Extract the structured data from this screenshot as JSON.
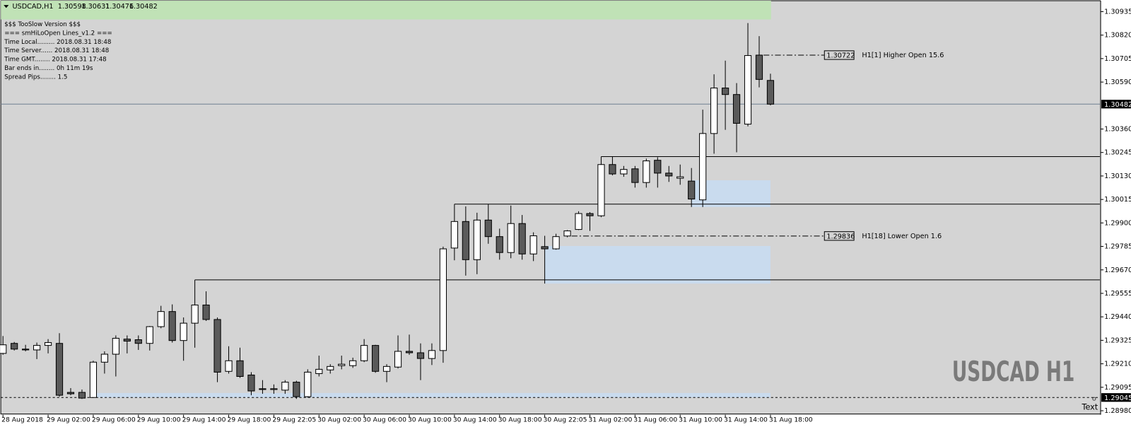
{
  "chart_data": {
    "type": "candlestick",
    "symbol": "USDCAD,H1",
    "watermark": "USDCAD H1",
    "corner_text": "Text",
    "info": [
      "$$$ TooSlow Version $$$",
      "=== smHiLoOpen Lines_v1.2 ===",
      "Time Local......... 2018.08.31 18:48",
      "Time Server...... 2018.08.31 18:48",
      "Time GMT........ 2018.08.31 17:48",
      "Bar ends in........ 0h 11m 19s",
      "Spread Pips........ 1.5"
    ],
    "categories": [
      "28 Aug 2018",
      null,
      null,
      null,
      "29 Aug 02:00",
      null,
      null,
      null,
      "29 Aug 06:00",
      null,
      null,
      null,
      "29 Aug 10:00",
      null,
      null,
      null,
      "29 Aug 14:00",
      null,
      null,
      null,
      "29 Aug 18:00",
      null,
      null,
      null,
      "29 Aug 22:05",
      null,
      null,
      null,
      "30 Aug 02:00",
      null,
      null,
      null,
      "30 Aug 06:00",
      null,
      null,
      null,
      "30 Aug 10:00",
      null,
      null,
      null,
      "30 Aug 14:00",
      null,
      null,
      null,
      "30 Aug 18:00",
      null,
      null,
      null,
      "30 Aug 22:05",
      null,
      null,
      null,
      "31 Aug 02:00",
      null,
      null,
      null,
      "31 Aug 06:00",
      null,
      null,
      null,
      "31 Aug 10:00",
      null,
      null,
      null,
      "31 Aug 14:00",
      null,
      null,
      null,
      "31 Aug 18:00"
    ],
    "open": [
      1.29261,
      1.2931,
      1.29282,
      1.29278,
      1.293,
      1.2931,
      1.2907,
      1.2907,
      1.29045,
      1.29218,
      1.29257,
      1.29331,
      1.29328,
      1.2931,
      1.29392,
      1.29466,
      1.29324,
      1.29409,
      1.29498,
      1.29427,
      1.29173,
      1.29225,
      1.29155,
      1.29088,
      1.29084,
      1.29081,
      1.2912,
      1.29049,
      1.29162,
      1.2918,
      1.29201,
      1.29201,
      1.29225,
      1.293,
      1.29173,
      1.29194,
      1.29271,
      1.29264,
      1.29236,
      1.29275,
      1.29777,
      1.29907,
      1.2972,
      1.29914,
      1.29833,
      1.29755,
      1.29897,
      1.29748,
      1.29784,
      1.29773,
      1.29836,
      1.29868,
      1.29946,
      1.29935,
      1.30186,
      1.3014,
      1.30165,
      1.30098,
      1.30207,
      1.30144,
      1.30119,
      1.30105,
      1.30013,
      1.30338,
      1.30561,
      1.30529,
      1.30384,
      1.30722,
      1.30598
    ],
    "high": [
      1.29346,
      1.29317,
      1.29303,
      1.29314,
      1.29331,
      1.2936,
      1.29091,
      1.29084,
      1.29225,
      1.29271,
      1.29349,
      1.29349,
      1.29349,
      1.29395,
      1.29494,
      1.29501,
      1.29437,
      1.29621,
      1.29565,
      1.29437,
      1.29296,
      1.29289,
      1.29169,
      1.2913,
      1.29109,
      1.2913,
      1.29127,
      1.29183,
      1.2925,
      1.29208,
      1.2925,
      1.2924,
      1.29331,
      1.29303,
      1.29208,
      1.29349,
      1.29353,
      1.2931,
      1.2931,
      1.29784,
      1.29992,
      1.29981,
      1.2995,
      1.29992,
      1.29872,
      1.29985,
      1.29939,
      1.29854,
      1.29837,
      1.29847,
      1.29865,
      1.29957,
      1.29953,
      1.30225,
      1.30225,
      1.30179,
      1.30179,
      1.30215,
      1.30222,
      1.30179,
      1.30186,
      1.30169,
      1.30455,
      1.30628,
      1.30695,
      1.30585,
      1.30879,
      1.30815,
      1.30631
    ],
    "low": [
      1.29254,
      1.29275,
      1.29271,
      1.29233,
      1.29261,
      1.29049,
      1.29056,
      1.29038,
      1.29045,
      1.29162,
      1.29148,
      1.29261,
      1.29278,
      1.29275,
      1.29384,
      1.29314,
      1.29225,
      1.29289,
      1.2942,
      1.2912,
      1.29162,
      1.29141,
      1.29056,
      1.29063,
      1.29063,
      1.29063,
      1.29038,
      1.29045,
      1.29148,
      1.29162,
      1.29183,
      1.2919,
      1.29218,
      1.29166,
      1.2912,
      1.29187,
      1.29254,
      1.2913,
      1.29204,
      1.29215,
      1.29717,
      1.29642,
      1.29649,
      1.29798,
      1.2972,
      1.29727,
      1.2972,
      1.29713,
      1.29603,
      1.29769,
      1.2983,
      1.29865,
      1.29861,
      1.29928,
      1.30133,
      1.30126,
      1.30073,
      1.30073,
      1.30073,
      1.30101,
      1.30087,
      1.29978,
      1.29978,
      1.30239,
      1.30356,
      1.30246,
      1.30373,
      1.30564,
      1.30476
    ],
    "close": [
      1.29303,
      1.29282,
      1.29278,
      1.293,
      1.29314,
      1.29056,
      1.29063,
      1.29042,
      1.29218,
      1.29257,
      1.29335,
      1.29321,
      1.2931,
      1.29392,
      1.29466,
      1.29324,
      1.29409,
      1.29498,
      1.29427,
      1.29169,
      1.29225,
      1.29148,
      1.29077,
      1.29084,
      1.29088,
      1.2912,
      1.29049,
      1.29169,
      1.29183,
      1.29197,
      1.29208,
      1.29225,
      1.293,
      1.29173,
      1.29197,
      1.29271,
      1.29264,
      1.29236,
      1.29275,
      1.29773,
      1.29907,
      1.2972,
      1.29914,
      1.29833,
      1.29755,
      1.29897,
      1.29748,
      1.29837,
      1.29773,
      1.29833,
      1.29861,
      1.29946,
      1.29935,
      1.30186,
      1.3014,
      1.30162,
      1.30098,
      1.30204,
      1.30144,
      1.3013,
      1.30126,
      1.30017,
      1.30338,
      1.30561,
      1.30529,
      1.30388,
      1.3072,
      1.30603,
      1.30482
    ],
    "up_color": "#ffffff",
    "down_color": "#5a5a5a",
    "ylim": [
      1.28964,
      1.30992
    ],
    "yticks": [
      1.30935,
      {
        "value": 1.3082,
        "label": "1.30820"
      },
      1.30705,
      {
        "value": 1.3059,
        "label": "1.30590"
      },
      {
        "value": 1.3036,
        "label": "1.30360"
      },
      1.30245,
      {
        "value": 1.3013,
        "label": "1.30130"
      },
      1.30015,
      {
        "value": 1.299,
        "label": "1.29900"
      },
      1.29785,
      {
        "value": 1.2967,
        "label": "1.29670"
      },
      1.29555,
      {
        "value": 1.2944,
        "label": "1.29440"
      },
      1.29325,
      {
        "value": 1.2921,
        "label": "1.29210"
      },
      1.29095,
      {
        "value": 1.2898,
        "label": "1.28980"
      }
    ],
    "levels": [
      1.30225,
      1.29992,
      1.29621
    ],
    "zones": [
      {
        "low": 1.29978,
        "high": 1.30109
      },
      {
        "low": 1.29603,
        "high": 1.29787
      },
      {
        "low": 1.29045,
        "high": 1.29067
      }
    ],
    "zone_color": "#c9dbee",
    "dashed_level": 1.29045,
    "annotations": [
      {
        "price": 1.30722,
        "text": "H1[1] Higher Open 15.6"
      },
      {
        "price": 1.29836,
        "text": "H1[18] Lower Open 1.6"
      }
    ]
  }
}
